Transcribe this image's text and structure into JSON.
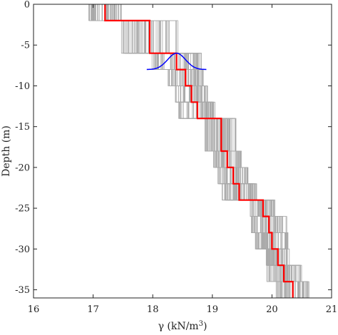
{
  "chart_data": {
    "type": "line",
    "xlabel": "γ (kN/m",
    "xlabel_sup": "3",
    "xlabel_close": ")",
    "ylabel": "Depth (m)",
    "xlim": [
      16,
      21
    ],
    "ylim": [
      -36,
      0
    ],
    "x_ticks": [
      16,
      17,
      18,
      19,
      20,
      21
    ],
    "y_ticks": [
      0,
      -5,
      -10,
      -15,
      -20,
      -25,
      -30,
      -35
    ],
    "grid": false,
    "legend": "none",
    "colors": {
      "mean_profile": "#ff0000",
      "realizations": "#a8a8a8",
      "distribution": "#0000ff"
    },
    "series": [
      {
        "role": "mean_profile",
        "layers": [
          {
            "top": 0,
            "bottom": -2,
            "value": 17.2
          },
          {
            "top": -2,
            "bottom": -6,
            "value": 17.95
          },
          {
            "top": -6,
            "bottom": -8,
            "value": 18.4
          },
          {
            "top": -8,
            "bottom": -10,
            "value": 18.55
          },
          {
            "top": -10,
            "bottom": -12,
            "value": 18.65
          },
          {
            "top": -12,
            "bottom": -14,
            "value": 18.75
          },
          {
            "top": -14,
            "bottom": -18,
            "value": 19.15
          },
          {
            "top": -18,
            "bottom": -20,
            "value": 19.25
          },
          {
            "top": -20,
            "bottom": -22,
            "value": 19.35
          },
          {
            "top": -22,
            "bottom": -24,
            "value": 19.45
          },
          {
            "top": -24,
            "bottom": -26,
            "value": 19.85
          },
          {
            "top": -26,
            "bottom": -28,
            "value": 19.95
          },
          {
            "top": -28,
            "bottom": -30,
            "value": 20.0
          },
          {
            "top": -30,
            "bottom": -32,
            "value": 20.1
          },
          {
            "top": -32,
            "bottom": -34,
            "value": 20.2
          },
          {
            "top": -34,
            "bottom": -36,
            "value": 20.35
          }
        ]
      },
      {
        "role": "realizations",
        "count": 60,
        "spread": [
          0.28,
          0.48,
          0.42,
          0.3,
          0.28,
          0.32,
          0.28,
          0.24,
          0.26,
          0.3,
          0.22,
          0.3,
          0.28,
          0.2,
          0.3,
          0.28
        ]
      },
      {
        "role": "distribution",
        "center": 18.4,
        "sd": 0.15,
        "x_range": [
          17.9,
          18.9
        ],
        "base_depth": -8,
        "peak_depth": -6
      }
    ]
  }
}
